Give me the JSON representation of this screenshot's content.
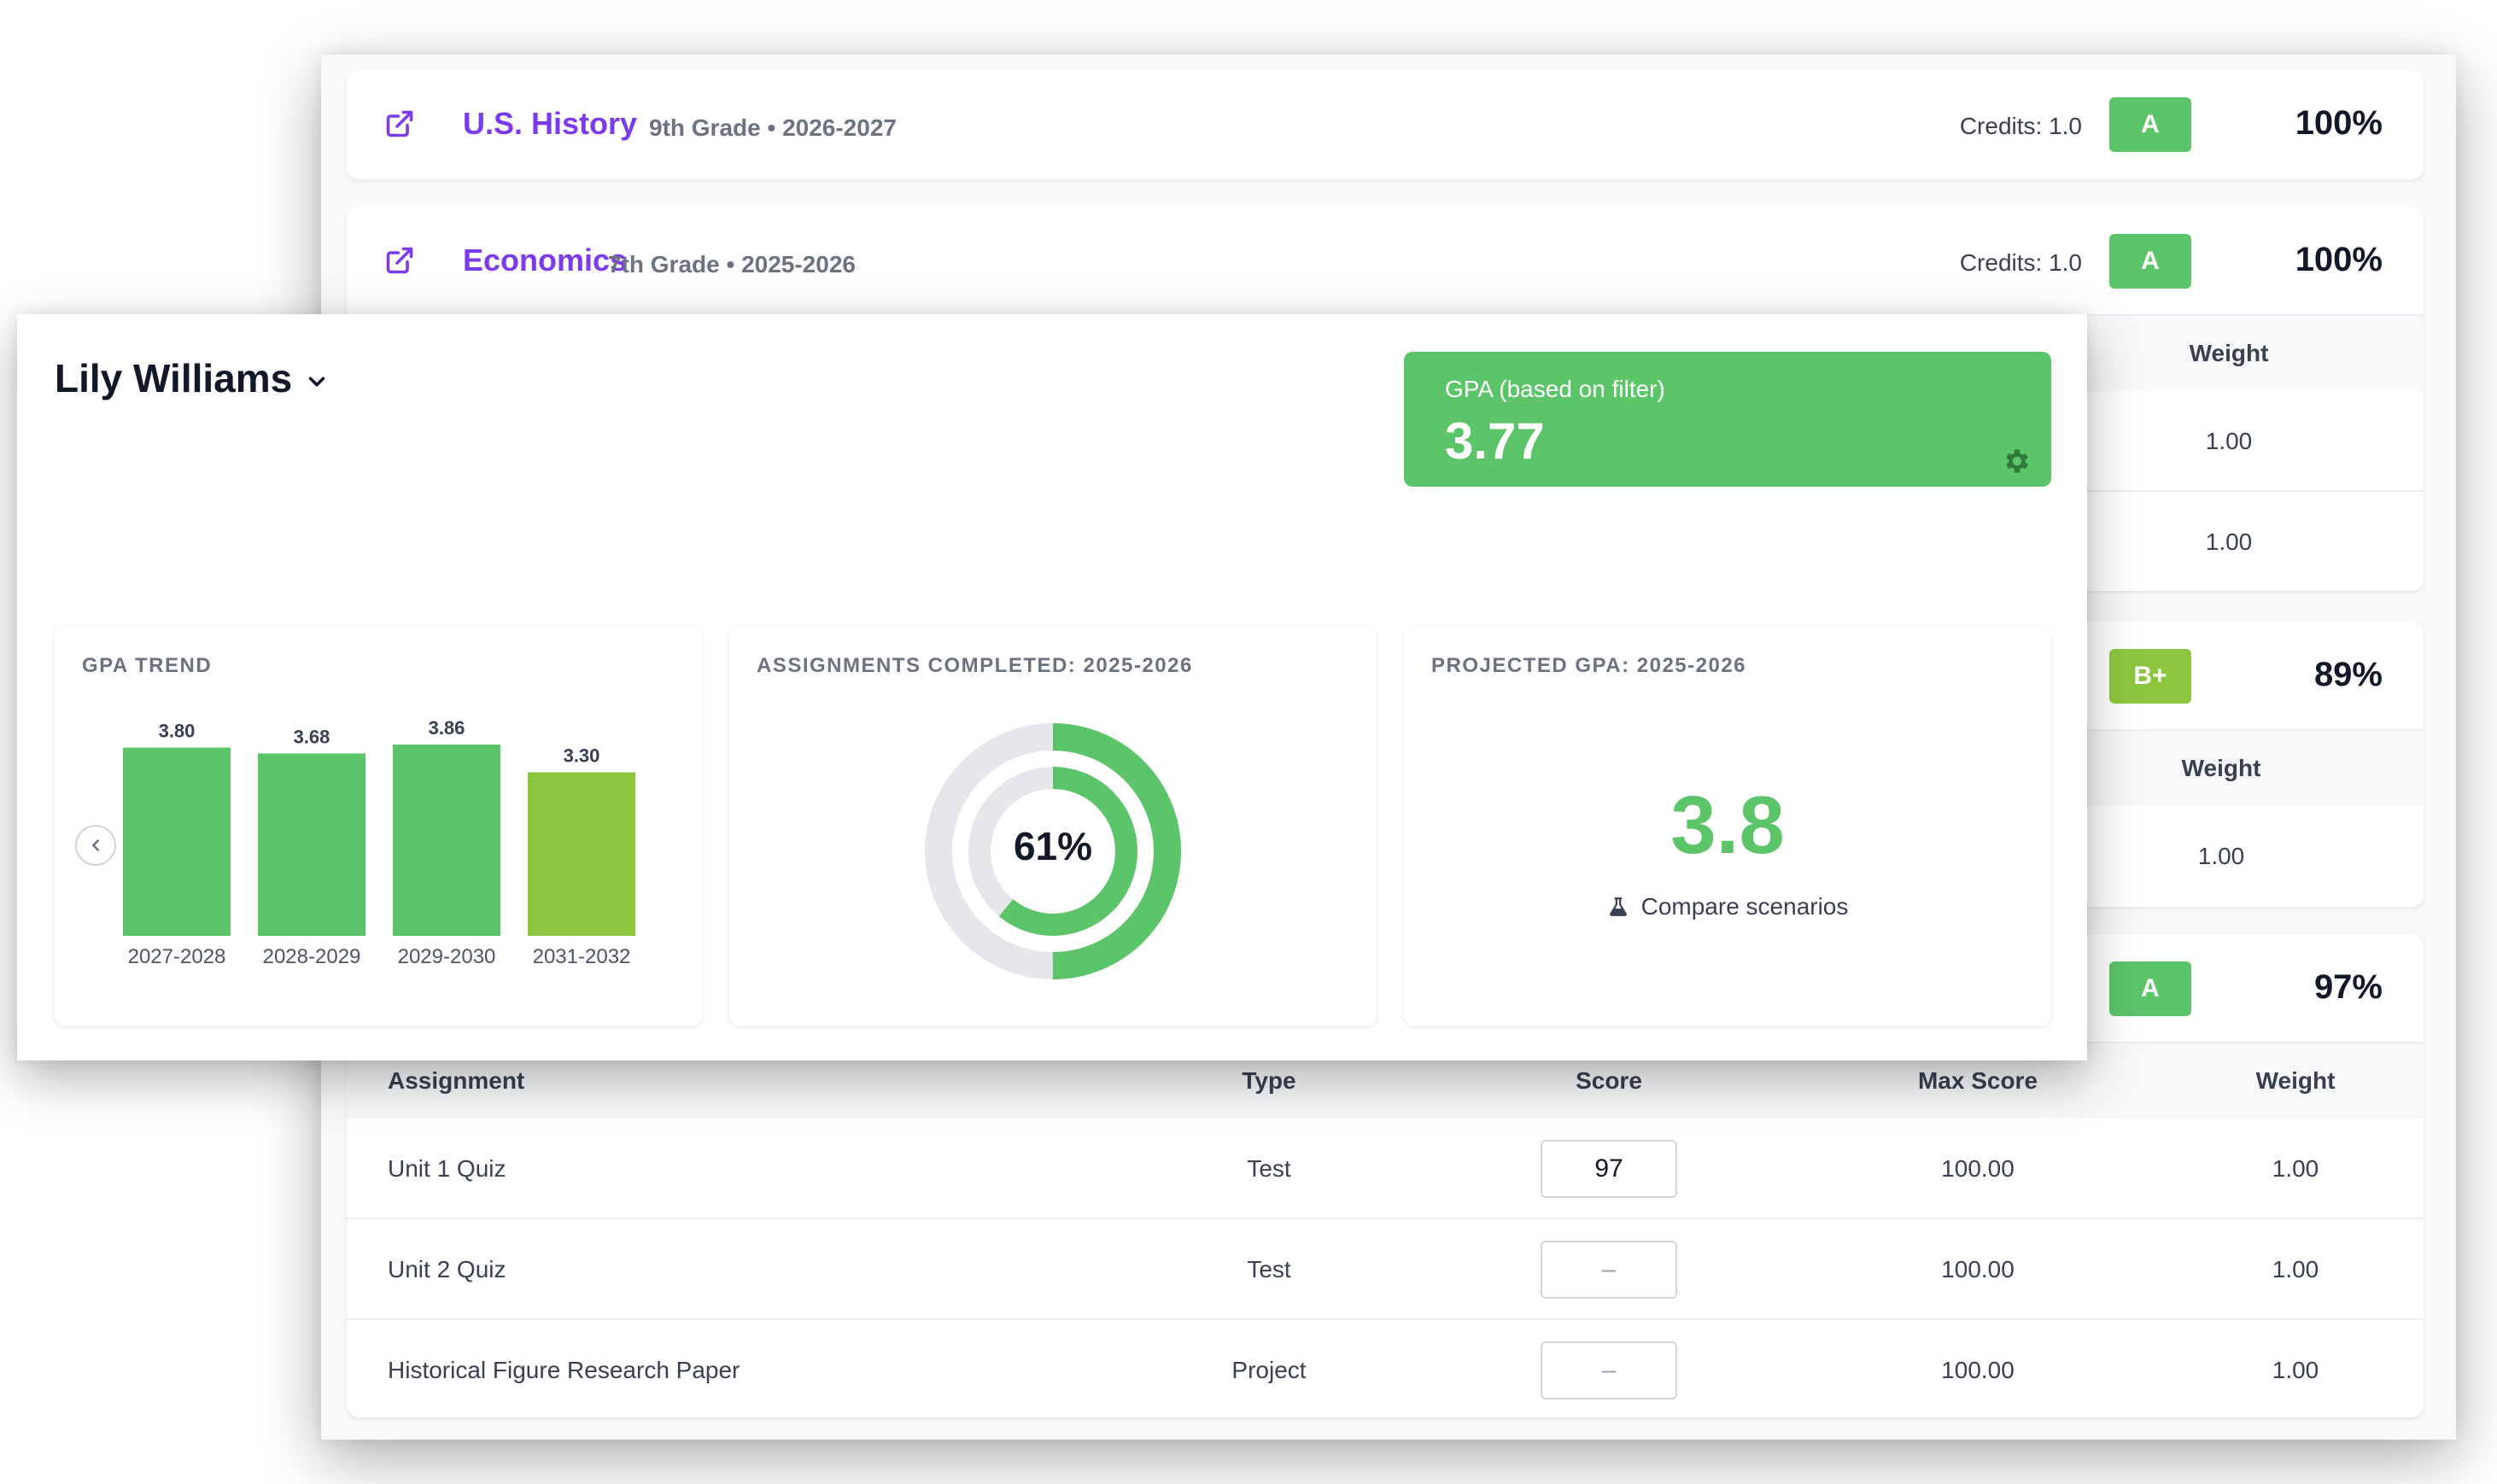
{
  "courses": [
    {
      "name": "U.S. History",
      "grade_level": "9th Grade • 2026-2027",
      "credits": "Credits: 1.0",
      "letter": "A",
      "percent": "100%"
    },
    {
      "name": "Economics",
      "grade_level": "7th Grade • 2025-2026",
      "credits": "Credits: 1.0",
      "letter": "A",
      "percent": "100%"
    },
    {
      "letter": "B+",
      "percent": "89%"
    },
    {
      "letter": "A",
      "percent": "97%"
    }
  ],
  "economics_partial": {
    "weight_header": "Weight",
    "rows": [
      {
        "weight": "1.00"
      },
      {
        "weight": "1.00"
      }
    ]
  },
  "course3_partial": {
    "weight_header": "Weight",
    "rows": [
      {
        "weight": "1.00"
      }
    ]
  },
  "assignments_table": {
    "headers": {
      "assignment": "Assignment",
      "type": "Type",
      "score": "Score",
      "max_score": "Max Score",
      "weight": "Weight"
    },
    "rows": [
      {
        "assignment": "Unit 1 Quiz",
        "type": "Test",
        "score": "97",
        "max_score": "100.00",
        "weight": "1.00"
      },
      {
        "assignment": "Unit 2 Quiz",
        "type": "Test",
        "score": "–",
        "max_score": "100.00",
        "weight": "1.00"
      },
      {
        "assignment": "Historical Figure Research Paper",
        "type": "Project",
        "score": "–",
        "max_score": "100.00",
        "weight": "1.00"
      }
    ]
  },
  "student": {
    "name": "Lily Williams"
  },
  "gpa_card": {
    "label": "GPA (based on filter)",
    "value": "3.77"
  },
  "gpa_trend": {
    "title": "GPA TREND"
  },
  "assignments_completed": {
    "title": "ASSIGNMENTS COMPLETED: 2025-2026",
    "percent_label": "61%",
    "outer_fraction": 0.5,
    "inner_fraction": 0.61
  },
  "projected_gpa": {
    "title": "PROJECTED GPA: 2025-2026",
    "value": "3.8",
    "compare_label": "Compare scenarios"
  },
  "colors": {
    "green": "#5cc469",
    "lime": "#8cc63f",
    "purple": "#7c3aed",
    "track": "#e5e7eb"
  },
  "icons": [
    "external-link-icon",
    "chevron-down-icon",
    "gear-icon",
    "chevron-left-icon",
    "flask-icon"
  ],
  "chart_data": {
    "type": "bar",
    "categories": [
      "2027-2028",
      "2028-2029",
      "2029-2030",
      "2031-2032"
    ],
    "values": [
      3.8,
      3.68,
      3.86,
      3.3
    ],
    "bar_colors": [
      "#5cc469",
      "#5cc469",
      "#5cc469",
      "#8cc63f"
    ],
    "ylim": [
      0,
      3.86
    ]
  }
}
